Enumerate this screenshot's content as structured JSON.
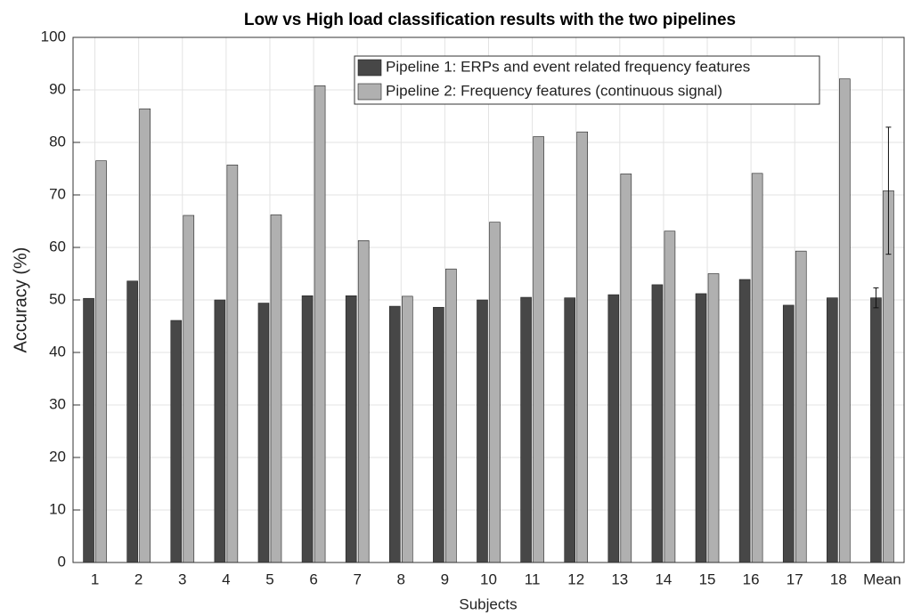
{
  "chart_data": {
    "type": "bar",
    "title": "Low vs High load classification results with the two pipelines",
    "xlabel": "Subjects",
    "ylabel": "Accuracy (%)",
    "categories": [
      "1",
      "2",
      "3",
      "4",
      "5",
      "6",
      "7",
      "8",
      "9",
      "10",
      "11",
      "12",
      "13",
      "14",
      "15",
      "16",
      "17",
      "18",
      "Mean"
    ],
    "series": [
      {
        "name": "Pipeline 1: ERPs and event related frequency features",
        "color": "#474747",
        "values": [
          50.3,
          53.6,
          46.1,
          50.0,
          49.4,
          50.8,
          50.8,
          48.8,
          48.6,
          50.0,
          50.5,
          50.4,
          51.0,
          52.9,
          51.2,
          53.9,
          49.0,
          50.4,
          50.4
        ],
        "errors": [
          null,
          null,
          null,
          null,
          null,
          null,
          null,
          null,
          null,
          null,
          null,
          null,
          null,
          null,
          null,
          null,
          null,
          null,
          1.9
        ]
      },
      {
        "name": "Pipeline 2: Frequency features (continuous signal)",
        "color": "#b0b0b0",
        "values": [
          76.5,
          86.4,
          66.1,
          75.7,
          66.2,
          90.8,
          61.3,
          50.7,
          55.9,
          64.8,
          81.1,
          82.0,
          74.0,
          63.1,
          55.0,
          74.1,
          59.3,
          92.1,
          70.8
        ],
        "errors": [
          null,
          null,
          null,
          null,
          null,
          null,
          null,
          null,
          null,
          null,
          null,
          null,
          null,
          null,
          null,
          null,
          null,
          null,
          12.1
        ]
      }
    ],
    "ylim": [
      0,
      100
    ],
    "yticks": [
      0,
      10,
      20,
      30,
      40,
      50,
      60,
      70,
      80,
      90,
      100
    ],
    "grid": true
  }
}
